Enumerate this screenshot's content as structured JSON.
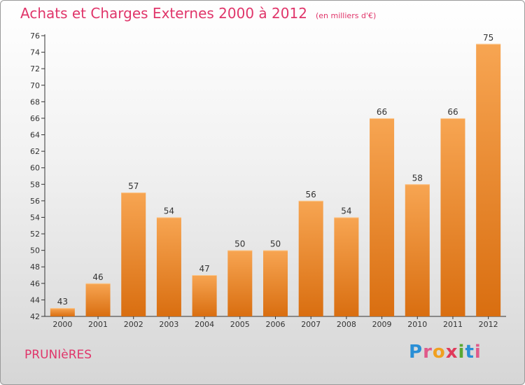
{
  "header": {
    "title": "Achats et Charges Externes 2000 à 2012",
    "subtitle": "(en milliers d'€)"
  },
  "footer": {
    "location": "PRUNIèRES",
    "brand_letters": [
      "P",
      "r",
      "o",
      "x",
      "i",
      "t",
      "i"
    ],
    "brand_colors": [
      "#2a8fd6",
      "#e05a8a",
      "#f0a020",
      "#e03a5a",
      "#5aa832",
      "#2a8fd6",
      "#e05a8a"
    ]
  },
  "chart_data": {
    "type": "bar",
    "title": "Achats et Charges Externes 2000 à 2012",
    "subtitle": "(en milliers d'€)",
    "categories": [
      "2000",
      "2001",
      "2002",
      "2003",
      "2004",
      "2005",
      "2006",
      "2007",
      "2008",
      "2009",
      "2010",
      "2011",
      "2012"
    ],
    "values": [
      43,
      46,
      57,
      54,
      47,
      50,
      50,
      56,
      54,
      66,
      58,
      66,
      75
    ],
    "ylim": [
      42,
      76
    ],
    "yticks": [
      42,
      44,
      46,
      48,
      50,
      52,
      54,
      56,
      58,
      60,
      62,
      64,
      66,
      68,
      70,
      72,
      74,
      76
    ],
    "grid": false,
    "bar_color": "#f0912e",
    "xlabel": "",
    "ylabel": ""
  }
}
